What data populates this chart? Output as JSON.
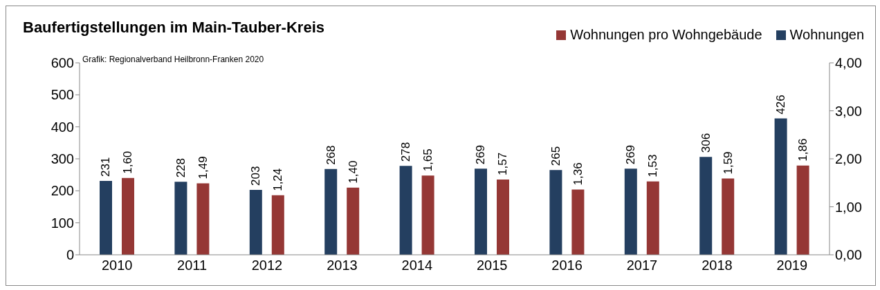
{
  "chart_data": {
    "type": "bar",
    "title": "Baufertigstellungen im Main-Tauber-Kreis",
    "annotations": [
      "Grafik: Regionalverband Heilbronn-Franken 2020"
    ],
    "categories": [
      "2010",
      "2011",
      "2012",
      "2013",
      "2014",
      "2015",
      "2016",
      "2017",
      "2018",
      "2019"
    ],
    "series": [
      {
        "name": "Wohnungen",
        "color": "#243f60",
        "values": [
          231,
          228,
          203,
          268,
          278,
          269,
          265,
          269,
          306,
          426
        ],
        "value_labels": [
          "231",
          "228",
          "203",
          "268",
          "278",
          "269",
          "265",
          "269",
          "306",
          "426"
        ]
      },
      {
        "name": "Wohnungen pro Wohngebäude",
        "color": "#953735",
        "axis": "y2",
        "values": [
          1.6,
          1.49,
          1.24,
          1.4,
          1.65,
          1.57,
          1.36,
          1.53,
          1.59,
          1.86
        ],
        "value_labels": [
          "1,60",
          "1,49",
          "1,24",
          "1,40",
          "1,65",
          "1,57",
          "1,36",
          "1,53",
          "1,59",
          "1,86"
        ]
      }
    ],
    "ylim": [
      0,
      600
    ],
    "yticks": [
      0,
      100,
      200,
      300,
      400,
      500,
      600
    ],
    "y2lim": [
      0,
      4
    ],
    "y2ticks": [
      {
        "value": 0,
        "label": "0,00"
      },
      {
        "value": 1,
        "label": "1,00"
      },
      {
        "value": 2,
        "label": "2,00"
      },
      {
        "value": 3,
        "label": "3,00"
      },
      {
        "value": 4,
        "label": "4,00"
      }
    ],
    "legend": "top right",
    "grid": false
  }
}
